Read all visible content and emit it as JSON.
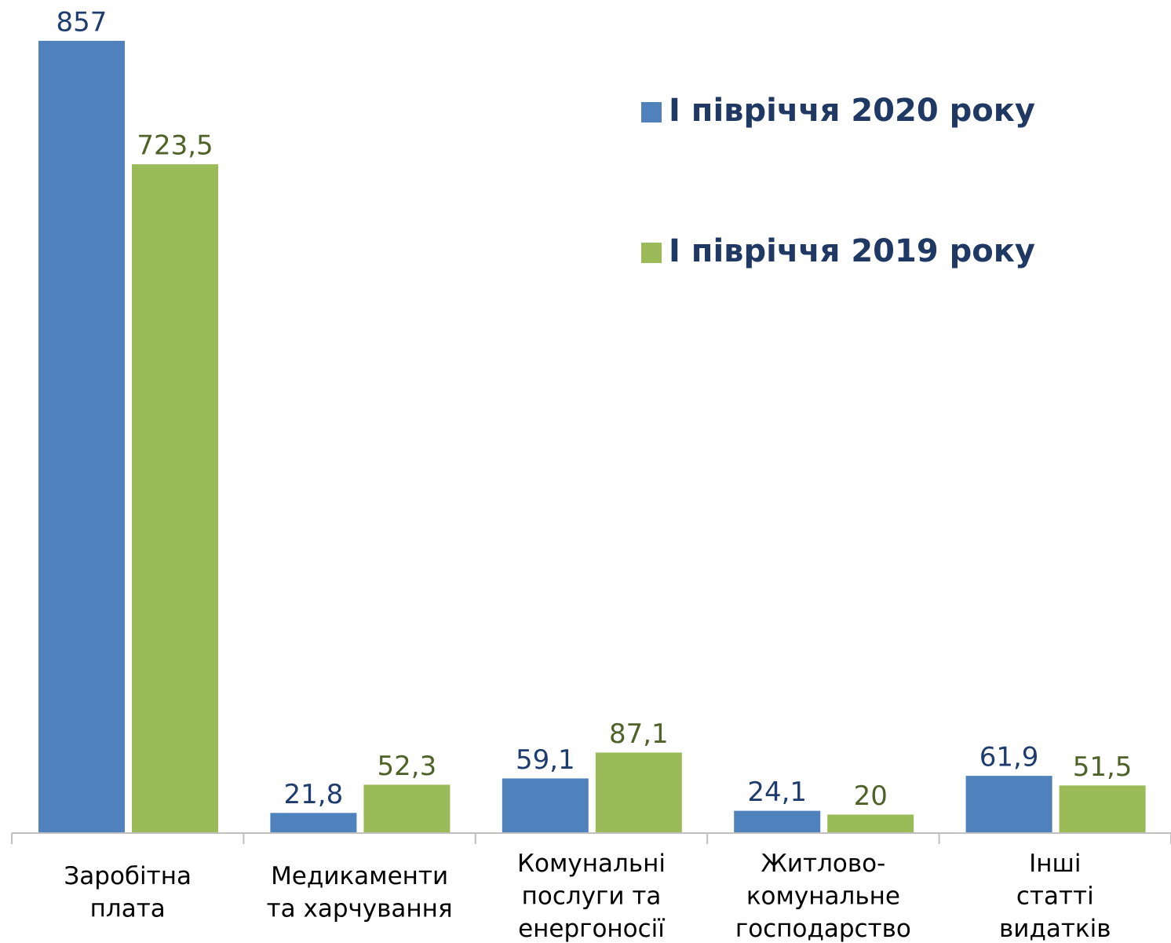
{
  "chart_data": {
    "type": "bar",
    "categories": [
      "Заробітна\nплата",
      "Медикаменти\nта харчування",
      "Комунальні\nпослуги та\nенергоносії",
      "Житлово-\nкомунальне\nгосподарство",
      "Інші\nстатті\nвидатків"
    ],
    "series": [
      {
        "name": "I півріччя 2020 року",
        "color": "#4f81bd",
        "label_color": "#1f3c6e",
        "values": [
          857,
          21.8,
          59.1,
          24.1,
          61.9
        ],
        "value_labels": [
          "857",
          "21,8",
          "59,1",
          "24,1",
          "61,9"
        ]
      },
      {
        "name": "I півріччя 2019 року",
        "color": "#9bbb59",
        "label_color": "#4f6228",
        "values": [
          723.5,
          52.3,
          87.1,
          20,
          51.5
        ],
        "value_labels": [
          "723,5",
          "52,3",
          "87,1",
          "20",
          "51,5"
        ]
      }
    ],
    "legend": "top-right"
  }
}
